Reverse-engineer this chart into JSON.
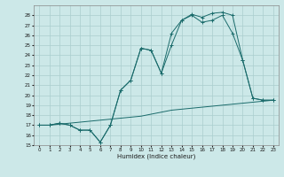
{
  "xlabel": "Humidex (Indice chaleur)",
  "background_color": "#cce8e8",
  "grid_color": "#aacece",
  "line_color": "#1a6b6b",
  "xlim": [
    -0.5,
    23.5
  ],
  "ylim": [
    15,
    29
  ],
  "yticks": [
    15,
    16,
    17,
    18,
    19,
    20,
    21,
    22,
    23,
    24,
    25,
    26,
    27,
    28
  ],
  "xticks": [
    0,
    1,
    2,
    3,
    4,
    5,
    6,
    7,
    8,
    9,
    10,
    11,
    12,
    13,
    14,
    15,
    16,
    17,
    18,
    19,
    20,
    21,
    22,
    23
  ],
  "line1_x": [
    0,
    1,
    2,
    3,
    4,
    5,
    6,
    7,
    8,
    9,
    10,
    11,
    12,
    13,
    14,
    15,
    16,
    17,
    18,
    19,
    20,
    21,
    22,
    23
  ],
  "line1_y": [
    17,
    17,
    17.2,
    17,
    16.5,
    16.5,
    15.3,
    17,
    20.5,
    21.5,
    24.7,
    24.5,
    22.2,
    26.2,
    27.5,
    28.0,
    27.3,
    27.5,
    28.0,
    26.2,
    23.5,
    19.7,
    19.5,
    19.5
  ],
  "line2_x": [
    0,
    1,
    2,
    3,
    4,
    5,
    6,
    7,
    8,
    9,
    10,
    11,
    12,
    13,
    14,
    15,
    16,
    17,
    18,
    19,
    20,
    21,
    22,
    23
  ],
  "line2_y": [
    17,
    17,
    17.2,
    17,
    16.5,
    16.5,
    15.3,
    17,
    20.5,
    21.5,
    24.7,
    24.5,
    22.2,
    25.0,
    27.5,
    28.1,
    27.8,
    28.2,
    28.3,
    28.0,
    23.5,
    19.7,
    19.5,
    19.5
  ],
  "line3_x": [
    0,
    1,
    2,
    3,
    4,
    5,
    6,
    7,
    8,
    9,
    10,
    11,
    12,
    13,
    14,
    15,
    16,
    17,
    18,
    19,
    20,
    21,
    22,
    23
  ],
  "line3_y": [
    17.0,
    17.0,
    17.1,
    17.2,
    17.3,
    17.4,
    17.5,
    17.6,
    17.7,
    17.8,
    17.9,
    18.1,
    18.3,
    18.5,
    18.6,
    18.7,
    18.8,
    18.9,
    19.0,
    19.1,
    19.2,
    19.3,
    19.4,
    19.5
  ]
}
